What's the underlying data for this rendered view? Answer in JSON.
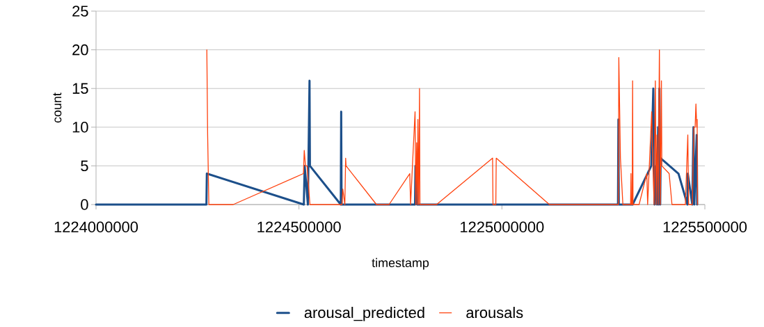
{
  "chart_data": {
    "type": "line",
    "xlabel": "timestamp",
    "ylabel": "count",
    "xlim": [
      1224000000,
      1225500000
    ],
    "xticks": [
      1224000000,
      1224500000,
      1225000000,
      1225500000
    ],
    "ylim": [
      0,
      25
    ],
    "yticks": [
      0,
      5,
      10,
      15,
      20,
      25
    ],
    "grid": "y",
    "legend": "bottom",
    "marker": "none",
    "line_style": "solid",
    "series": [
      {
        "name": "arousal_predicted",
        "color": "#1c4f8a",
        "x": [
          1224000000,
          1224272000,
          1224273000,
          1224512000,
          1224514000,
          1224522000,
          1224526000,
          1224527000,
          1224603000,
          1224604000,
          1224605000,
          1224786000,
          1224787000,
          1224790000,
          1224791000,
          1225286000,
          1225287000,
          1225288000,
          1225322000,
          1225368000,
          1225373000,
          1225376000,
          1225380000,
          1225382000,
          1225385000,
          1225386000,
          1225388000,
          1225390000,
          1225391000,
          1225435000,
          1225457000,
          1225458000,
          1225469000,
          1225472000,
          1225474000,
          1225480000,
          1225481000
        ],
        "values": [
          0,
          0,
          4,
          0,
          5,
          0,
          16,
          5,
          0,
          12,
          0,
          0,
          5,
          5,
          0,
          0,
          11,
          0,
          0,
          5,
          15,
          0,
          5,
          0,
          10,
          0,
          15,
          0,
          6,
          4,
          0,
          4,
          0,
          10,
          0,
          9,
          0
        ]
      },
      {
        "name": "arousals",
        "color": "#ff420e",
        "x": [
          1224273000,
          1224275000,
          1224278000,
          1224338000,
          1224511000,
          1224513000,
          1224516000,
          1224520000,
          1224527000,
          1224606000,
          1224608000,
          1224613000,
          1224615000,
          1224616000,
          1224691000,
          1224722000,
          1224773000,
          1224775000,
          1224786000,
          1224788000,
          1224790000,
          1224792000,
          1224793000,
          1224795000,
          1224797000,
          1224798000,
          1224839000,
          1224977000,
          1224978000,
          1224985000,
          1224986000,
          1225117000,
          1225287000,
          1225288000,
          1225292000,
          1225298000,
          1225317000,
          1225318000,
          1225319000,
          1225321000,
          1225322000,
          1225323000,
          1225338000,
          1225357000,
          1225359000,
          1225369000,
          1225372000,
          1225375000,
          1225378000,
          1225380000,
          1225382000,
          1225385000,
          1225388000,
          1225390000,
          1225393000,
          1225394000,
          1225412000,
          1225419000,
          1225452000,
          1225458000,
          1225460000,
          1225469000,
          1225473000,
          1225476000,
          1225478000,
          1225480000,
          1225481000,
          1225482000
        ],
        "values": [
          20,
          9,
          0,
          0,
          4,
          7,
          5,
          5,
          0,
          0,
          2,
          0,
          6,
          5,
          0,
          0,
          4,
          0,
          12,
          0,
          8,
          0,
          11,
          0,
          15,
          0,
          0,
          6,
          0,
          0,
          6,
          0,
          0,
          19,
          6,
          0,
          0,
          4,
          0,
          0,
          16,
          0,
          0,
          4,
          0,
          12,
          5,
          0,
          16,
          0,
          9,
          0,
          20,
          0,
          16,
          5,
          4,
          0,
          0,
          9,
          0,
          0,
          10,
          10,
          13,
          10,
          11,
          0
        ]
      }
    ]
  }
}
